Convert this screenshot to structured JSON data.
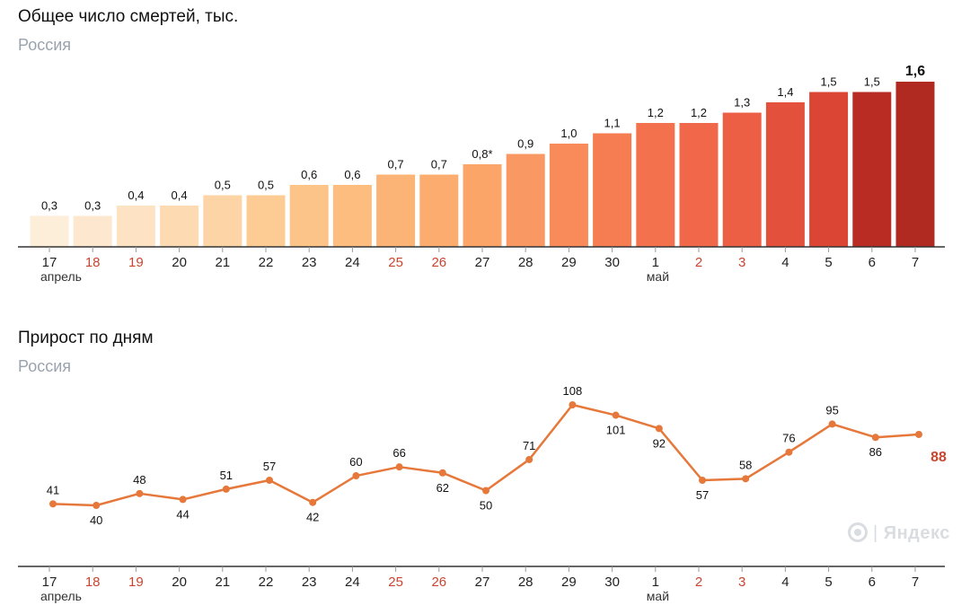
{
  "charts": {
    "total": {
      "title": "Общее число смертей, тыс.",
      "subtitle": "Россия"
    },
    "daily": {
      "title": "Прирост по дням",
      "subtitle": "Россия"
    }
  },
  "watermark": "Яндекс",
  "colors": {
    "weekend": "#c8452f",
    "line": "#e5783a",
    "baseline": "#333333",
    "tick": "#999999"
  },
  "chart_data": [
    {
      "type": "bar",
      "title": "Общее число смертей, тыс.",
      "subtitle": "Россия",
      "categories": [
        "17",
        "18",
        "19",
        "20",
        "21",
        "22",
        "23",
        "24",
        "25",
        "26",
        "27",
        "28",
        "29",
        "30",
        "1",
        "2",
        "3",
        "4",
        "5",
        "6",
        "7"
      ],
      "weekend": [
        false,
        true,
        true,
        false,
        false,
        false,
        false,
        false,
        true,
        true,
        false,
        false,
        false,
        false,
        false,
        true,
        true,
        false,
        false,
        false,
        false
      ],
      "month_labels": [
        {
          "index": 0,
          "label": "апрель"
        },
        {
          "index": 14,
          "label": "май"
        }
      ],
      "values": [
        0.3,
        0.3,
        0.4,
        0.4,
        0.5,
        0.5,
        0.6,
        0.6,
        0.7,
        0.7,
        0.8,
        0.9,
        1.0,
        1.1,
        1.2,
        1.2,
        1.3,
        1.4,
        1.5,
        1.5,
        1.6
      ],
      "labels": [
        "0,3",
        "0,3",
        "0,4",
        "0,4",
        "0,5",
        "0,5",
        "0,6",
        "0,6",
        "0,7",
        "0,7",
        "0,8*",
        "0,9",
        "1,0",
        "1,1",
        "1,2",
        "1,2",
        "1,3",
        "1,4",
        "1,5",
        "1,5",
        "1,6"
      ],
      "bar_colors": [
        "#fdeed9",
        "#fde8cf",
        "#fde3c4",
        "#fddab2",
        "#fdd4a5",
        "#fdcc95",
        "#fdc489",
        "#fcbd7e",
        "#fcb476",
        "#fbac6e",
        "#fba568",
        "#fa9863",
        "#f88b59",
        "#f67d52",
        "#f4714d",
        "#f06849",
        "#ec5f44",
        "#e3503c",
        "#db4534",
        "#b92c23",
        "#b02a21"
      ],
      "ylim": [
        0,
        1.6
      ],
      "highlight_last": true
    },
    {
      "type": "line",
      "title": "Прирост по дням",
      "subtitle": "Россия",
      "categories": [
        "17",
        "18",
        "19",
        "20",
        "21",
        "22",
        "23",
        "24",
        "25",
        "26",
        "27",
        "28",
        "29",
        "30",
        "1",
        "2",
        "3",
        "4",
        "5",
        "6",
        "7"
      ],
      "weekend": [
        false,
        true,
        true,
        false,
        false,
        false,
        false,
        false,
        true,
        true,
        false,
        false,
        false,
        false,
        false,
        true,
        true,
        false,
        false,
        false,
        false
      ],
      "month_labels": [
        {
          "index": 0,
          "label": "апрель"
        },
        {
          "index": 14,
          "label": "май"
        }
      ],
      "values": [
        41,
        40,
        48,
        44,
        51,
        57,
        42,
        60,
        66,
        62,
        50,
        71,
        108,
        101,
        92,
        57,
        58,
        76,
        95,
        86,
        88
      ],
      "label_below": [
        false,
        true,
        false,
        true,
        false,
        false,
        true,
        false,
        false,
        true,
        true,
        false,
        false,
        true,
        true,
        true,
        false,
        false,
        false,
        true,
        false
      ],
      "ylim": [
        40,
        108
      ],
      "highlight_last": true
    }
  ]
}
